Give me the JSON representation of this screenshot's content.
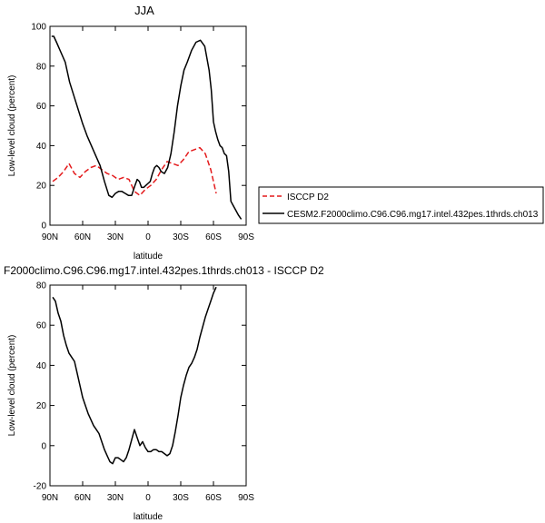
{
  "chart_data": [
    {
      "type": "line",
      "title": "JJA",
      "xlabel": "latitude",
      "ylabel": "Low-level cloud (percent)",
      "xlim": [
        90,
        -90
      ],
      "ylim": [
        0,
        100
      ],
      "x_ticks": [
        {
          "value": 90,
          "label": "90N"
        },
        {
          "value": 60,
          "label": "60N"
        },
        {
          "value": 30,
          "label": "30N"
        },
        {
          "value": 0,
          "label": "0"
        },
        {
          "value": -30,
          "label": "30S"
        },
        {
          "value": -60,
          "label": "60S"
        },
        {
          "value": -90,
          "label": "90S"
        }
      ],
      "y_ticks": [
        0,
        20,
        40,
        60,
        80,
        100
      ],
      "grid": false,
      "legend_position": "right",
      "series": [
        {
          "name": "ISCCP D2",
          "color": "#e41a1c",
          "dash": "dashed",
          "x": [
            87.5,
            82.5,
            77.5,
            72.5,
            67.5,
            62.5,
            57.5,
            52.5,
            47.5,
            42.5,
            37.5,
            32.5,
            27.5,
            22.5,
            17.5,
            12.5,
            7.5,
            2.5,
            -2.5,
            -7.5,
            -12.5,
            -17.5,
            -22.5,
            -27.5,
            -32.5,
            -37.5,
            -42.5,
            -47.5,
            -52.5,
            -57.5,
            -62.5
          ],
          "y": [
            22,
            24,
            27,
            31,
            26,
            24,
            27,
            29,
            30,
            28,
            26,
            25,
            23,
            24,
            23,
            17,
            15,
            18,
            20,
            23,
            28,
            32,
            31,
            30,
            33,
            37,
            38,
            39,
            36,
            28,
            16
          ]
        },
        {
          "name": "CESM2.F2000climo.C96.C96.mg17.intel.432pes.1thrds.ch013",
          "color": "#000000",
          "dash": "solid",
          "x": [
            88.5,
            86.5,
            84,
            80,
            76,
            72,
            68,
            64,
            60,
            56,
            52,
            48,
            44,
            40,
            36,
            33,
            30,
            27,
            24,
            21,
            18,
            15,
            12,
            10,
            8,
            6,
            4,
            2,
            0,
            -2,
            -4,
            -6,
            -8,
            -10,
            -12,
            -15,
            -18,
            -21,
            -24,
            -27,
            -30,
            -33,
            -36,
            -40,
            -44,
            -48,
            -52,
            -56,
            -58,
            -60,
            -62,
            -64,
            -66,
            -68,
            -70,
            -72,
            -74,
            -76,
            -78,
            -80,
            -83,
            -85.5
          ],
          "y": [
            95,
            95,
            92,
            87,
            82,
            72,
            65,
            58,
            51,
            45,
            40,
            35,
            30,
            22,
            15,
            14,
            16,
            17,
            17,
            16,
            15,
            15,
            20,
            23,
            22,
            19,
            19,
            20,
            21,
            22,
            26,
            29,
            30,
            29,
            27,
            26,
            29,
            36,
            47,
            60,
            70,
            78,
            82,
            88,
            92,
            93,
            90,
            78,
            68,
            52,
            47,
            43,
            40,
            39,
            36,
            35,
            27,
            12,
            10,
            8,
            5,
            3
          ]
        }
      ]
    },
    {
      "type": "line",
      "title": "F2000climo.C96.C96.mg17.intel.432pes.1thrds.ch013 - ISCCP D2",
      "xlabel": "latitude",
      "ylabel": "Low-level cloud (percent)",
      "xlim": [
        90,
        -90
      ],
      "ylim": [
        -20,
        80
      ],
      "x_ticks": [
        {
          "value": 90,
          "label": "90N"
        },
        {
          "value": 60,
          "label": "60N"
        },
        {
          "value": 30,
          "label": "30N"
        },
        {
          "value": 0,
          "label": "0"
        },
        {
          "value": -30,
          "label": "30S"
        },
        {
          "value": -60,
          "label": "60S"
        },
        {
          "value": -90,
          "label": "90S"
        }
      ],
      "y_ticks": [
        -20,
        0,
        20,
        40,
        60,
        80
      ],
      "grid": false,
      "series": [
        {
          "color": "#000000",
          "dash": "solid",
          "x": [
            87.5,
            85,
            82.5,
            80,
            77.5,
            75,
            72.5,
            70,
            67.5,
            65,
            62.5,
            60,
            57.5,
            55,
            52.5,
            50,
            47.5,
            45,
            42.5,
            40,
            37.5,
            35,
            32.5,
            30,
            27.5,
            25,
            22.5,
            20,
            17.5,
            15,
            12.5,
            10,
            7.5,
            5,
            2.5,
            0,
            -2.5,
            -5,
            -7.5,
            -10,
            -12.5,
            -15,
            -17.5,
            -20,
            -22.5,
            -25,
            -27.5,
            -30,
            -32.5,
            -35,
            -37.5,
            -40,
            -42.5,
            -45,
            -47.5,
            -50,
            -52.5,
            -55,
            -57.5,
            -60,
            -62.5
          ],
          "y": [
            74,
            72,
            66,
            62,
            55,
            50,
            46,
            44,
            42,
            36,
            30,
            24,
            20,
            16,
            13,
            10,
            8,
            6,
            2,
            -2,
            -5,
            -8,
            -9,
            -6,
            -6,
            -7,
            -8,
            -6,
            -2,
            3,
            8,
            4,
            0,
            2,
            -1,
            -3,
            -3,
            -2,
            -2,
            -3,
            -3,
            -4,
            -5,
            -4,
            0,
            7,
            15,
            24,
            30,
            35,
            39,
            41,
            44,
            48,
            54,
            59,
            64,
            68,
            72,
            76,
            79
          ]
        }
      ]
    }
  ]
}
